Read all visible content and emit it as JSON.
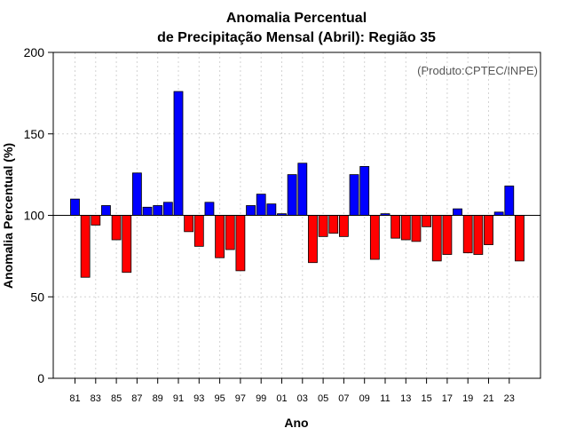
{
  "chart_data": {
    "type": "bar",
    "title": "Anomalia Percentual",
    "subtitle": "de Precipitação Mensal (Abril): Região 35",
    "xlabel": "Ano",
    "ylabel": "Anomalia Percentual (%)",
    "credit": "(Produto:CPTEC/INPE)",
    "baseline": 100,
    "ylim": [
      0,
      200
    ],
    "yticks": [
      "0",
      "50",
      "100",
      "150",
      "200"
    ],
    "xtick_labels": [
      "81",
      "83",
      "85",
      "87",
      "89",
      "91",
      "93",
      "95",
      "97",
      "99",
      "01",
      "03",
      "05",
      "07",
      "09",
      "11",
      "13",
      "15",
      "17",
      "19",
      "21",
      "23"
    ],
    "grid": true,
    "categories": [
      "1981",
      "1982",
      "1983",
      "1984",
      "1985",
      "1986",
      "1987",
      "1988",
      "1989",
      "1990",
      "1991",
      "1992",
      "1993",
      "1994",
      "1995",
      "1996",
      "1997",
      "1998",
      "1999",
      "2000",
      "2001",
      "2002",
      "2003",
      "2004",
      "2005",
      "2006",
      "2007",
      "2008",
      "2009",
      "2010",
      "2011",
      "2012",
      "2013",
      "2014",
      "2015",
      "2016",
      "2017",
      "2018",
      "2019",
      "2020",
      "2021",
      "2022",
      "2023",
      "2024"
    ],
    "values": [
      110,
      62,
      94,
      106,
      85,
      65,
      126,
      105,
      106,
      108,
      176,
      90,
      81,
      108,
      74,
      79,
      66,
      106,
      113,
      107,
      101,
      125,
      132,
      71,
      87,
      89,
      87,
      125,
      130,
      73,
      101,
      86,
      85,
      84,
      93,
      72,
      76,
      104,
      77,
      76,
      82,
      102,
      118,
      72
    ],
    "colors": {
      "above": "#0000ff",
      "below": "#ff0000",
      "outline": "#000000",
      "grid": "#d3d3d3"
    }
  }
}
